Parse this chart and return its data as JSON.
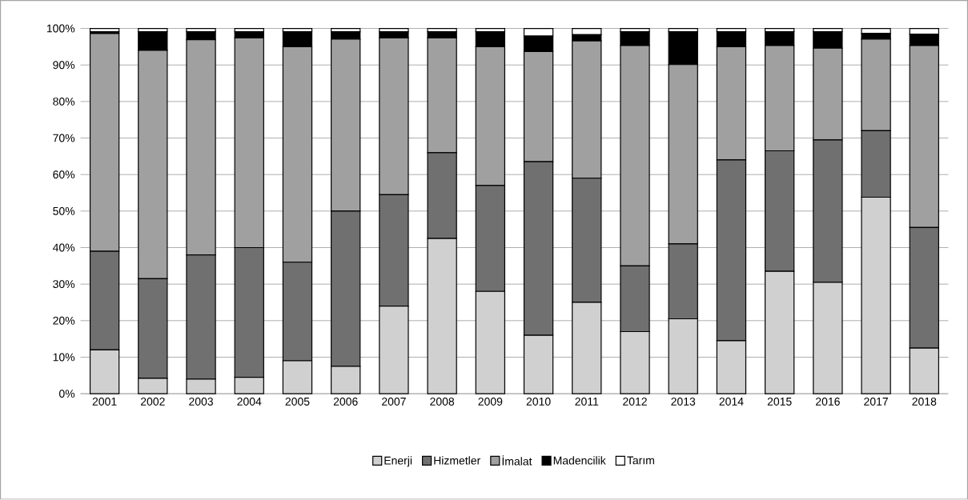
{
  "chart_data": {
    "type": "bar",
    "stacked": true,
    "categories": [
      "2001",
      "2002",
      "2003",
      "2004",
      "2005",
      "2006",
      "2007",
      "2008",
      "2009",
      "2010",
      "2011",
      "2012",
      "2013",
      "2014",
      "2015",
      "2016",
      "2017",
      "2018"
    ],
    "series": [
      {
        "name": "Enerji",
        "color": "#d0d0d0",
        "values": [
          12,
          4.2,
          4,
          4.5,
          9,
          7.5,
          24,
          42.5,
          28,
          16,
          25,
          17,
          20.5,
          14.5,
          33.5,
          30.5,
          53.8,
          12.5
        ]
      },
      {
        "name": "Hizmetler",
        "color": "#707070",
        "values": [
          27,
          27.3,
          34,
          35.5,
          27,
          42.5,
          30.5,
          23.5,
          29,
          47.5,
          34,
          18,
          20.5,
          49.5,
          33,
          39,
          18.2,
          33
        ]
      },
      {
        "name": "İmalat",
        "color": "#a0a0a0",
        "values": [
          59.6,
          62.5,
          58.9,
          57.4,
          59,
          47.1,
          42.9,
          31.4,
          38,
          30.2,
          37.6,
          60.3,
          49.1,
          31,
          28.8,
          25.1,
          25.1,
          49.8
        ]
      },
      {
        "name": "Madencilik",
        "color": "#000000",
        "values": [
          0.5,
          5.1,
          2.2,
          1.7,
          4.1,
          2,
          1.7,
          1.7,
          4.1,
          4.2,
          1.7,
          3.8,
          9,
          4.1,
          3.8,
          4.5,
          1.6,
          3.1
        ]
      },
      {
        "name": "Tarım",
        "color": "#ffffff",
        "values": [
          0.9,
          0.9,
          0.9,
          0.9,
          0.9,
          0.9,
          0.9,
          0.9,
          0.9,
          2.1,
          1.7,
          0.9,
          0.9,
          0.9,
          0.9,
          0.9,
          1.3,
          1.6
        ]
      }
    ],
    "ylim": [
      0,
      100
    ],
    "yticks": [
      {
        "value": 0,
        "label": "0%"
      },
      {
        "value": 10,
        "label": "10%"
      },
      {
        "value": 20,
        "label": "20%"
      },
      {
        "value": 30,
        "label": "30%"
      },
      {
        "value": 40,
        "label": "40%"
      },
      {
        "value": 50,
        "label": "50%"
      },
      {
        "value": 60,
        "label": "60%"
      },
      {
        "value": 70,
        "label": "70%"
      },
      {
        "value": 80,
        "label": "80%"
      },
      {
        "value": 90,
        "label": "90%"
      },
      {
        "value": 100,
        "label": "100%"
      }
    ],
    "grid": "y",
    "legend": "bottom"
  }
}
